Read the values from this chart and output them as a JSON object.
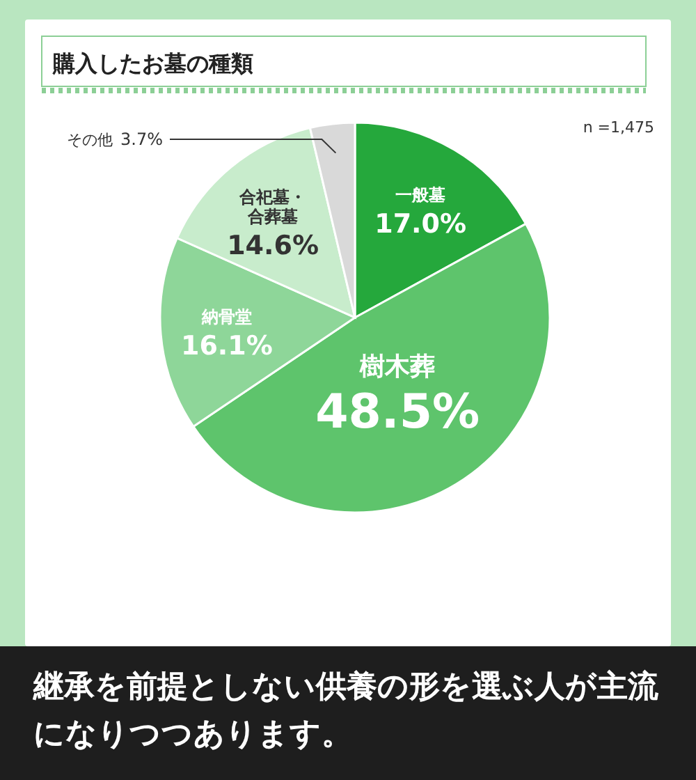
{
  "chart_data": {
    "type": "pie",
    "title": "購入したお墓の種類",
    "categories": [
      "一般墓",
      "樹木葬",
      "納骨堂",
      "合祀墓・合葬墓",
      "その他"
    ],
    "values": [
      17.0,
      48.5,
      16.1,
      14.6,
      3.7
    ],
    "value_labels": [
      "17.0%",
      "48.5%",
      "16.1%",
      "14.6%",
      "3.7%"
    ],
    "colors": [
      "#25a83c",
      "#5ec46c",
      "#8ed699",
      "#c8eccc",
      "#d9d9d9"
    ],
    "annotations": [
      "n =1,475",
      "継承を前提としない供養の形を選ぶ人が主流になりつつあります。"
    ]
  }
}
